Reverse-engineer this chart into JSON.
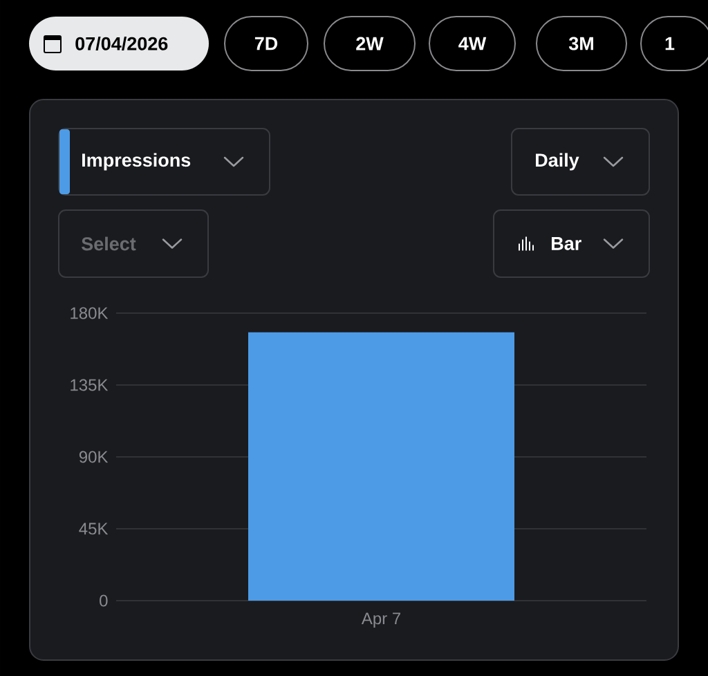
{
  "chart_data": {
    "type": "bar",
    "annotations": [
      "07/04/2026",
      "7D",
      "2W",
      "4W",
      "3M",
      "1",
      "Impressions",
      "Daily",
      "Select",
      "Bar"
    ],
    "categories": [
      "Apr 7"
    ],
    "values": [
      168000
    ],
    "color": "#4d9be6",
    "ylim": [
      0,
      180000
    ],
    "yticks": [
      0,
      {
        "value": 45000,
        "label": "45K"
      },
      {
        "value": 90000,
        "label": "90K"
      },
      {
        "value": 135000,
        "label": "135K"
      },
      {
        "value": 180000,
        "label": "180K"
      }
    ],
    "grid": "y"
  }
}
